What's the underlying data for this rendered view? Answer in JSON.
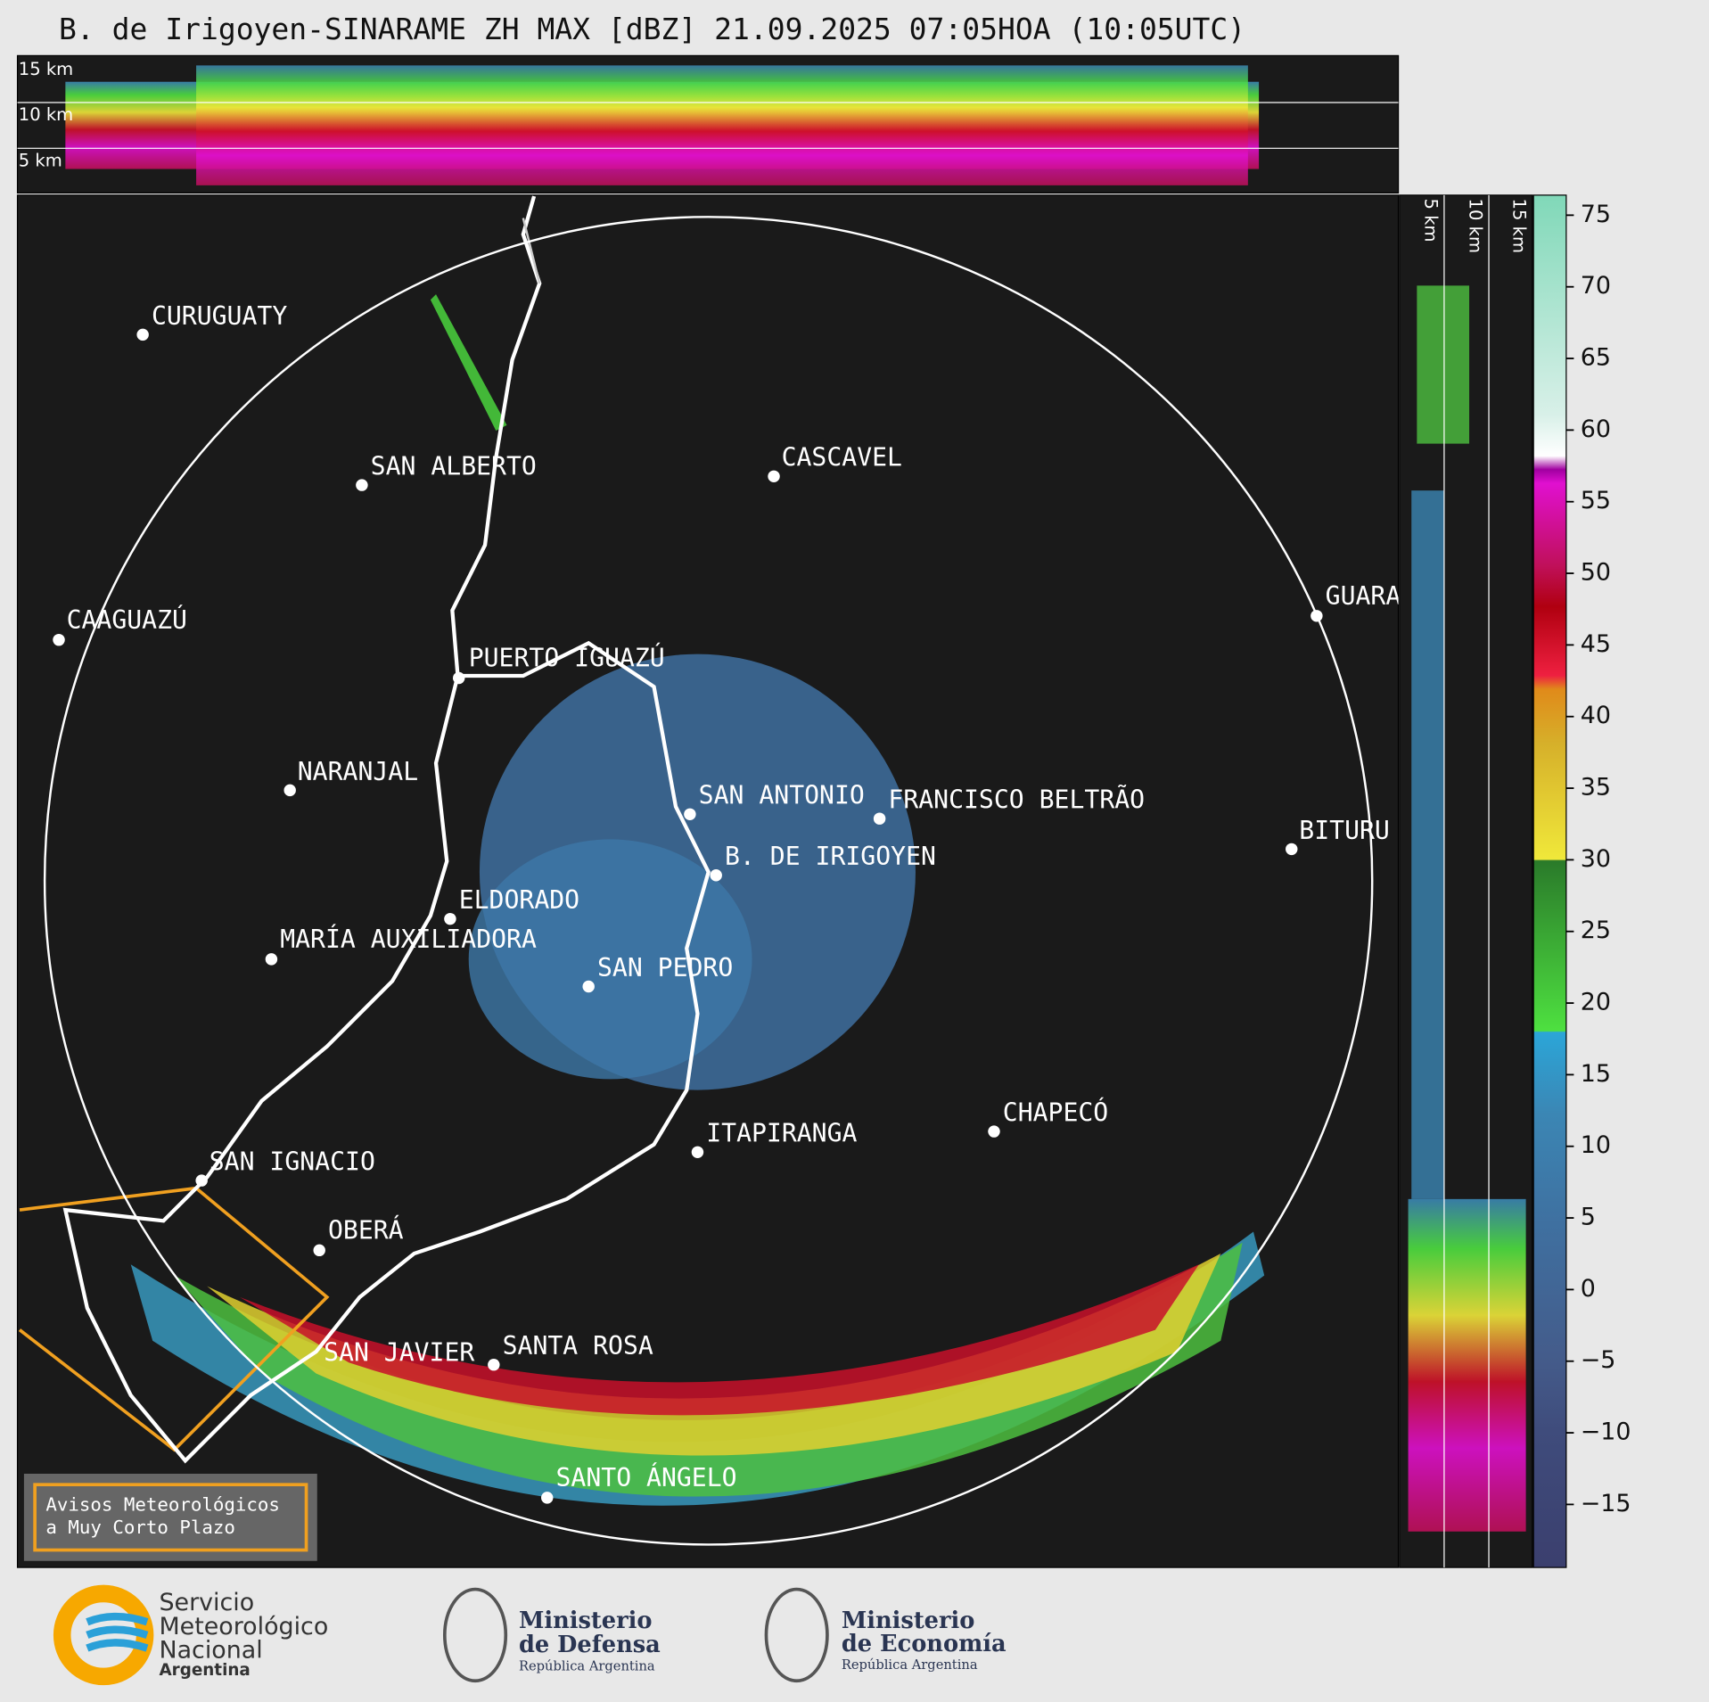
{
  "title": "B. de Irigoyen-SINARAME ZH MAX [dBZ] 21.09.2025 07:05HOA (10:05UTC)",
  "cross_section": {
    "height_labels": [
      "15 km",
      "10 km",
      "5 km"
    ]
  },
  "side_section": {
    "height_labels": [
      "5 km",
      "10 km",
      "15 km"
    ]
  },
  "colorbar": {
    "lim": [
      -19.4,
      76.4
    ],
    "ticks": [
      {
        "value": -15,
        "label": "−15"
      },
      {
        "value": -10,
        "label": "−10"
      },
      {
        "value": -5,
        "label": "−5"
      },
      0,
      5,
      10,
      15,
      20,
      25,
      30,
      35,
      40,
      45,
      50,
      55,
      60,
      65,
      70,
      75
    ]
  },
  "cities": [
    "CURUGUATY",
    "SAN ALBERTO",
    "CASCAVEL",
    "CAAGUAZÚ",
    "GUARA",
    "PUERTO IGUAZÚ",
    "NARANJAL",
    "SAN ANTONIO",
    "FRANCISCO BELTRÃO",
    "BITURU",
    "B. DE IRIGOYEN",
    "ELDORADO",
    "MARÍA AUXILIADORA",
    "SAN PEDRO",
    "CHAPECÓ",
    "ITAPIRANGA",
    "SAN IGNACIO",
    "OBERÁ",
    "SAN JAVIER",
    "SANTA ROSA",
    "SANTO ÁNGELO"
  ],
  "warning_box": {
    "lines": [
      "Avisos Meteorológicos",
      "a Muy Corto Plazo"
    ]
  },
  "logos": [
    {
      "lines": [
        "Servicio",
        "Meteorológico",
        "Nacional",
        "Argentina"
      ]
    },
    {
      "lines": [
        "Ministerio",
        "de Defensa",
        "República Argentina"
      ]
    },
    {
      "lines": [
        "Ministerio",
        "de Economía",
        "República Argentina"
      ]
    }
  ]
}
